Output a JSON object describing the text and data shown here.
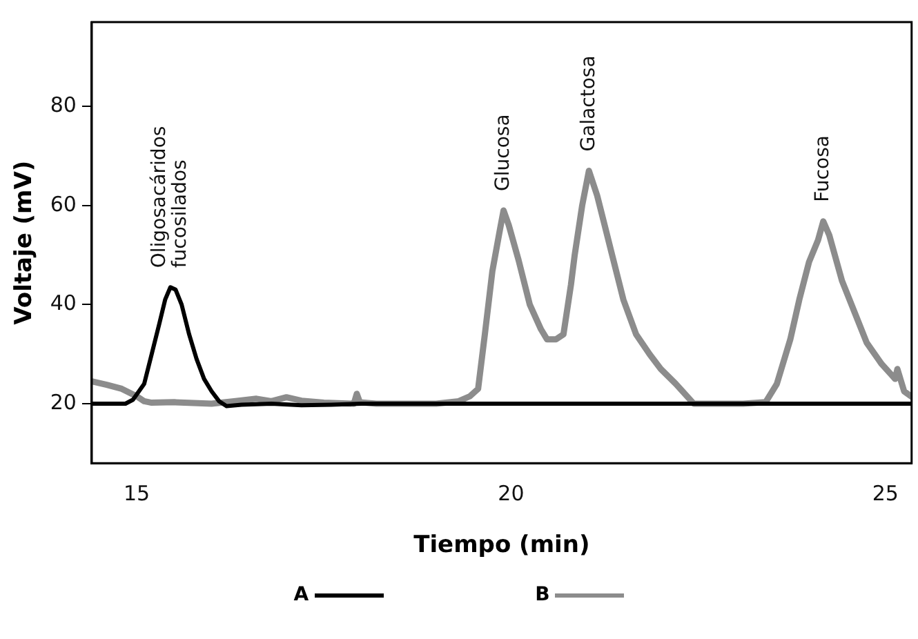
{
  "chart_data": {
    "type": "line",
    "xlabel": "Tiempo (min)",
    "ylabel": "Voltaje (mV)",
    "xlim": [
      14.4,
      25.35
    ],
    "xticks": [
      15,
      20,
      25
    ],
    "ylim": [
      8,
      97
    ],
    "yticks": [
      20,
      40,
      60,
      80
    ],
    "grid": false,
    "legend": "bottom",
    "marker": "none",
    "line_style": "solid",
    "series": [
      {
        "name": "A",
        "color": "#000000",
        "x": [
          14.4,
          14.85,
          14.95,
          15.1,
          15.2,
          15.3,
          15.38,
          15.45,
          15.52,
          15.6,
          15.7,
          15.8,
          15.9,
          16.0,
          16.1,
          16.2,
          16.4,
          16.8,
          17.2,
          17.6,
          18.0,
          19.0,
          20.0,
          21.0,
          22.0,
          23.0,
          24.0,
          25.0,
          25.35
        ],
        "values": [
          20,
          20,
          20.8,
          24,
          30,
          36,
          41,
          43.5,
          43,
          40,
          34,
          29,
          25,
          22.5,
          20.5,
          19.5,
          19.8,
          20,
          19.7,
          19.8,
          20,
          20,
          20,
          20,
          20,
          20,
          20,
          20,
          20
        ]
      },
      {
        "name": "B",
        "color": "#8c8c8c",
        "x": [
          14.4,
          14.6,
          14.8,
          15.0,
          15.1,
          15.2,
          15.5,
          16.0,
          16.3,
          16.6,
          16.8,
          17.0,
          17.2,
          17.5,
          17.9,
          17.94,
          17.98,
          18.2,
          18.6,
          19.0,
          19.3,
          19.45,
          19.56,
          19.65,
          19.75,
          19.85,
          19.9,
          19.97,
          20.1,
          20.25,
          20.4,
          20.48,
          20.6,
          20.7,
          20.8,
          20.85,
          20.95,
          21.04,
          21.15,
          21.25,
          21.35,
          21.5,
          21.67,
          21.85,
          22.0,
          22.2,
          22.44,
          22.8,
          23.1,
          23.4,
          23.55,
          23.73,
          23.85,
          23.98,
          24.1,
          24.17,
          24.25,
          24.42,
          24.6,
          24.75,
          24.95,
          25.1,
          25.13,
          25.16,
          25.25,
          25.35
        ],
        "values": [
          24.5,
          23.8,
          23,
          21.5,
          20.5,
          20.2,
          20.3,
          20,
          20.5,
          21,
          20.5,
          21.3,
          20.6,
          20.2,
          20,
          22,
          20.3,
          20,
          20,
          20,
          20.5,
          21.5,
          23,
          34,
          46.7,
          55,
          59,
          56,
          49,
          40,
          35,
          33,
          33,
          34,
          44,
          50,
          60,
          67,
          62,
          56,
          50,
          41,
          34,
          30,
          27,
          24,
          20,
          20,
          20,
          20.3,
          24,
          33,
          41,
          48.6,
          53,
          56.8,
          54,
          44.8,
          38,
          32.3,
          28,
          25.5,
          25,
          27,
          22.5,
          21.4
        ]
      }
    ],
    "annotations": [
      {
        "text": "Oligosacáridos\nfucosilados",
        "x": 15.45,
        "y": 43.5
      },
      {
        "text": "Glucosa",
        "x": 19.9,
        "y": 59
      },
      {
        "text": "Galactosa",
        "x": 21.04,
        "y": 67
      },
      {
        "text": "Fucosa",
        "x": 24.17,
        "y": 56.8
      }
    ]
  }
}
